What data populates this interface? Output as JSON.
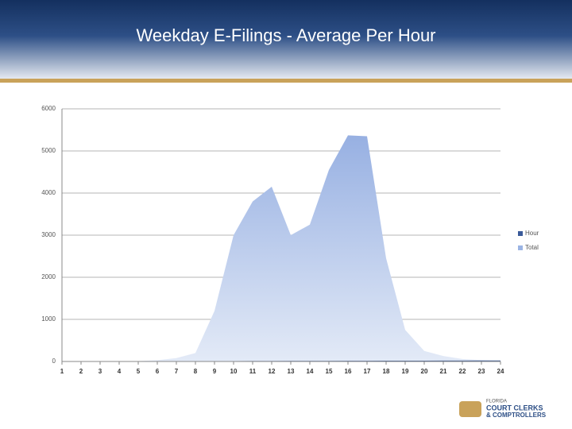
{
  "chart_data": {
    "type": "area",
    "title": "Weekday E-Filings - Average Per Hour",
    "categories": [
      1,
      2,
      3,
      4,
      5,
      6,
      7,
      8,
      9,
      10,
      11,
      12,
      13,
      14,
      15,
      16,
      17,
      18,
      19,
      20,
      21,
      22,
      23,
      24
    ],
    "series": [
      {
        "name": "Hour",
        "color": "#3a5a99",
        "values": [
          1,
          2,
          3,
          4,
          5,
          6,
          7,
          8,
          9,
          10,
          11,
          12,
          13,
          14,
          15,
          16,
          17,
          18,
          19,
          20,
          21,
          22,
          23,
          24
        ]
      },
      {
        "name": "Total",
        "color": "#9bb4e4",
        "values": [
          10,
          5,
          5,
          5,
          10,
          30,
          80,
          200,
          1200,
          3000,
          3800,
          4150,
          3000,
          3250,
          4550,
          5370,
          5350,
          2450,
          750,
          250,
          130,
          60,
          30,
          10
        ]
      }
    ],
    "ylim": [
      0,
      6000
    ],
    "yticks": [
      0,
      1000,
      2000,
      3000,
      4000,
      5000,
      6000
    ],
    "grid": true,
    "legend": "right",
    "logo": [
      "FLORIDA",
      "COURT CLERKS",
      "& COMPTROLLERS"
    ]
  }
}
